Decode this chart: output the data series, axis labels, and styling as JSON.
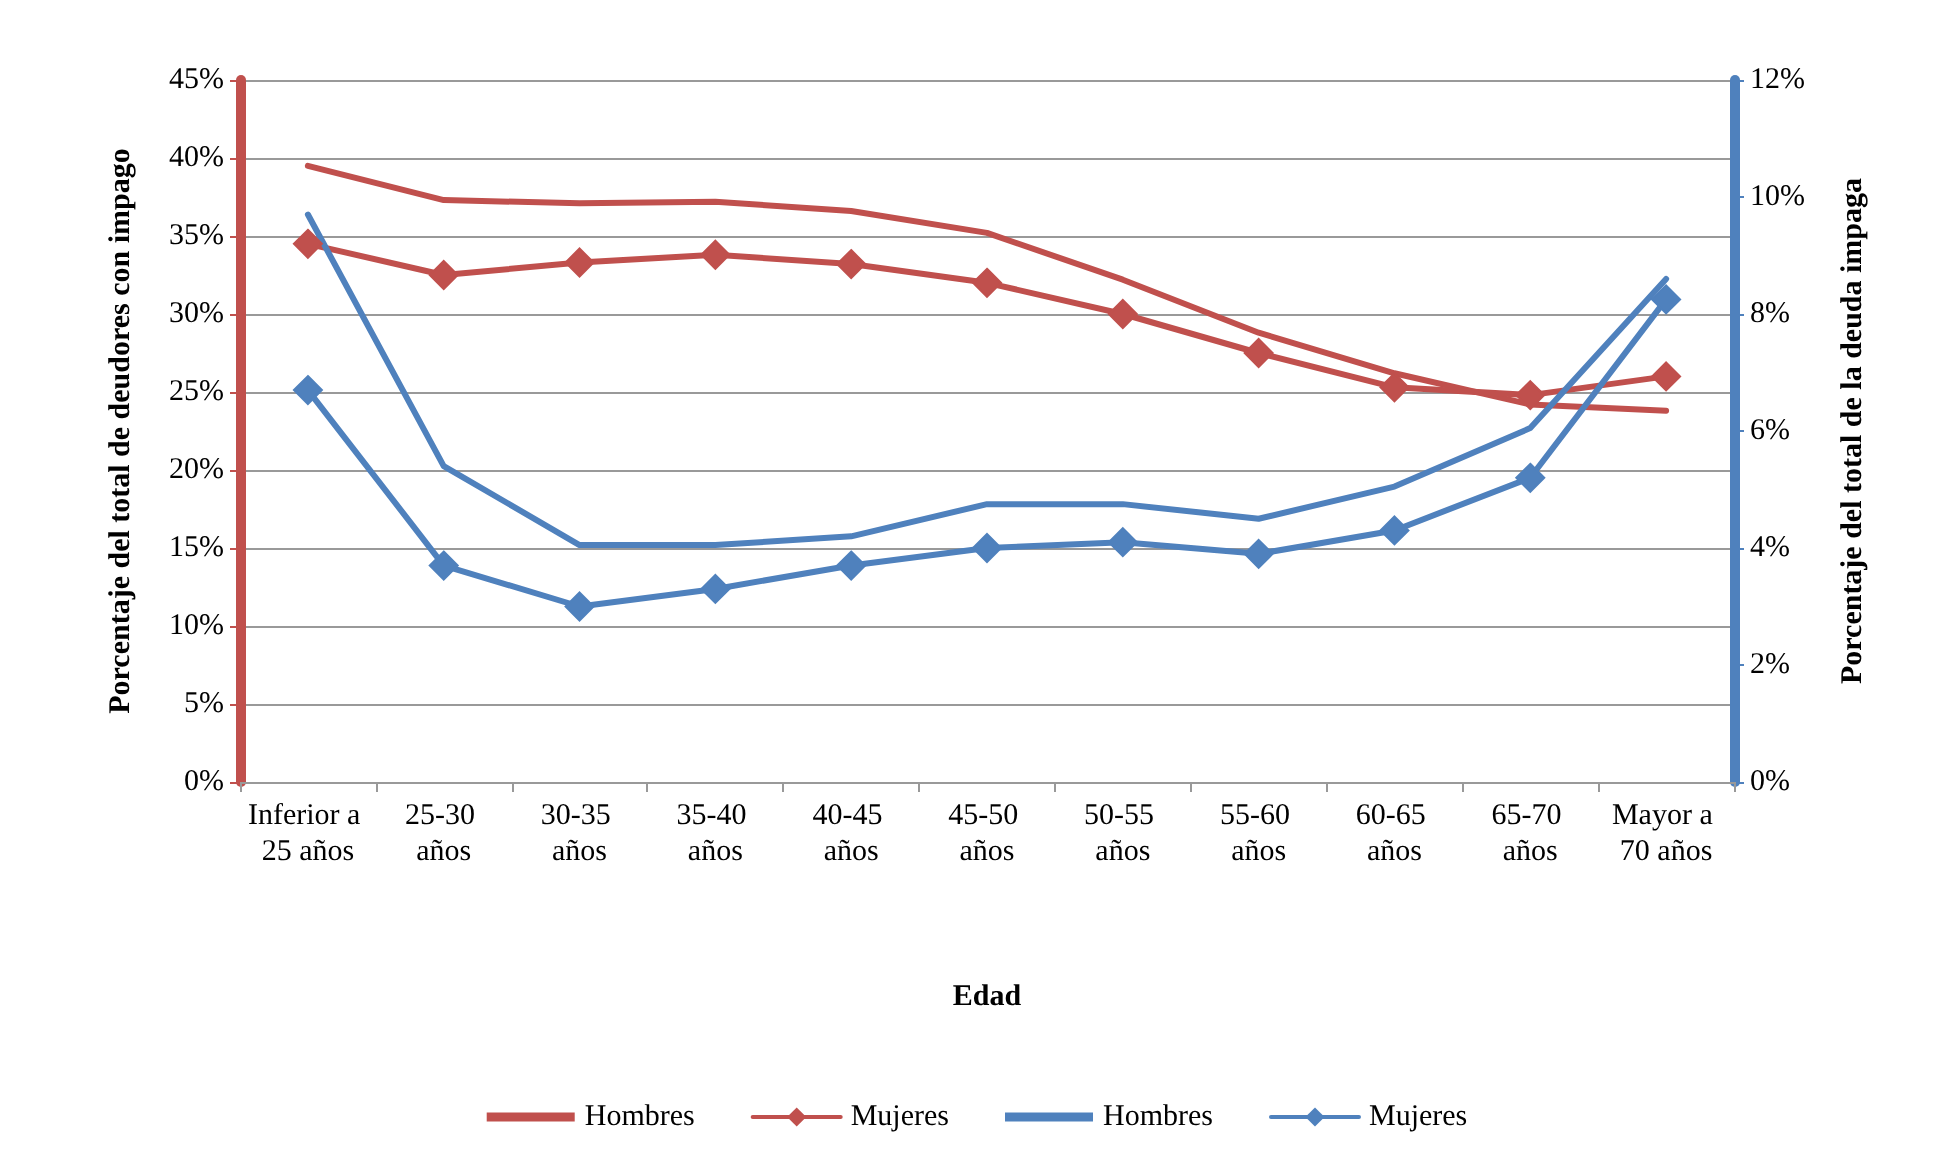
{
  "chart_data": {
    "type": "line",
    "xlabel": "Edad",
    "ylabel": "Porcentaje del total de deudores con impago",
    "y2label": "Porcentaje del total de la deuda impaga",
    "categories": [
      "Inferior a 25 años",
      "25-30 años",
      "30-35 años",
      "35-40 años",
      "40-45 años",
      "45-50 años",
      "50-55 años",
      "55-60 años",
      "60-65 años",
      "65-70 años",
      "Mayor a 70 años"
    ],
    "series": [
      {
        "name": "Hombres",
        "color": "#c0504d",
        "marker": "none",
        "values": [
          39.5,
          37.3,
          37.1,
          37.2,
          36.6,
          35.2,
          32.2,
          28.8,
          26.2,
          24.2,
          23.8
        ]
      },
      {
        "name": "Mujeres",
        "color": "#c0504d",
        "marker": "diamond",
        "values": [
          34.5,
          32.5,
          33.3,
          33.8,
          33.2,
          32.0,
          30.0,
          27.5,
          25.3,
          24.8,
          26.0
        ]
      },
      {
        "name": "Hombres",
        "color": "#4f81bd",
        "marker": "none",
        "axis": "y2",
        "values": [
          9.7,
          5.4,
          4.05,
          4.05,
          4.2,
          4.75,
          4.75,
          4.5,
          5.05,
          6.05,
          8.6
        ]
      },
      {
        "name": "Mujeres",
        "color": "#4f81bd",
        "marker": "diamond",
        "axis": "y2",
        "values": [
          6.7,
          3.7,
          3.0,
          3.3,
          3.7,
          4.0,
          4.1,
          3.9,
          4.3,
          5.2,
          8.25
        ]
      }
    ],
    "ylim": [
      0,
      45
    ],
    "yticks": [
      {
        "value": 0,
        "label": "0%"
      },
      {
        "value": 5,
        "label": "5%"
      },
      {
        "value": 10,
        "label": "10%"
      },
      {
        "value": 15,
        "label": "15%"
      },
      {
        "value": 20,
        "label": "20%"
      },
      {
        "value": 25,
        "label": "25%"
      },
      {
        "value": 30,
        "label": "30%"
      },
      {
        "value": 35,
        "label": "35%"
      },
      {
        "value": 40,
        "label": "40%"
      },
      {
        "value": 45,
        "label": "45%"
      }
    ],
    "y2lim": [
      0,
      12
    ],
    "y2ticks": [
      {
        "value": 0,
        "label": "0%"
      },
      {
        "value": 2,
        "label": "2%"
      },
      {
        "value": 4,
        "label": "4%"
      },
      {
        "value": 6,
        "label": "6%"
      },
      {
        "value": 8,
        "label": "8%"
      },
      {
        "value": 10,
        "label": "10%"
      },
      {
        "value": 12,
        "label": "12%"
      }
    ],
    "grid": "y",
    "legend": "bottom",
    "line_style": "solid"
  }
}
